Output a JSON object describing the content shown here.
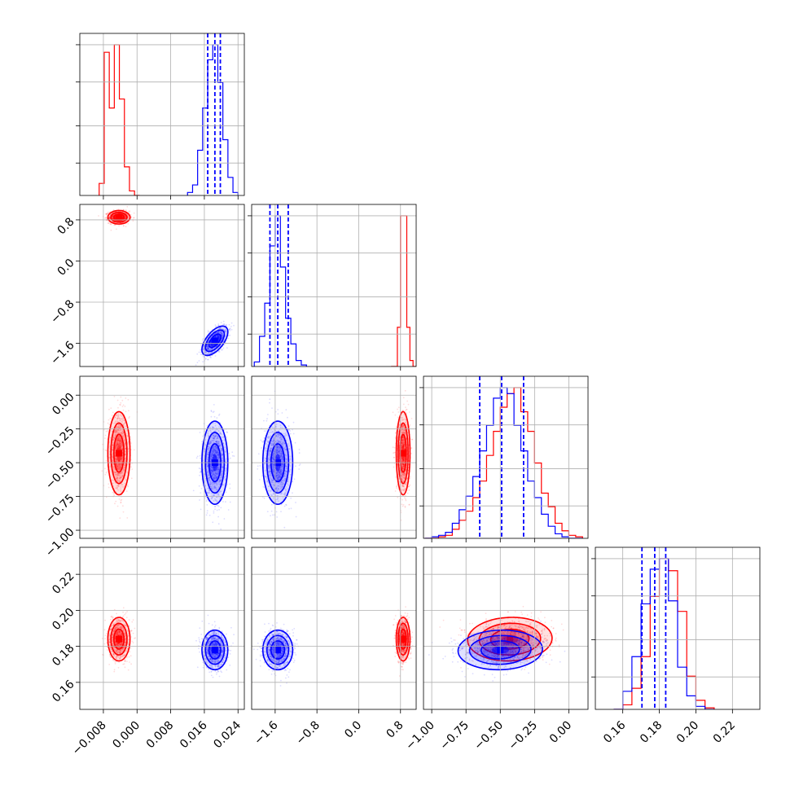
{
  "chart_data": {
    "type": "corner",
    "title": "",
    "n_params": 4,
    "grid": true,
    "colors": {
      "series_a": "#ff0000",
      "series_b": "#0000ff",
      "grid": "#b0b0b0",
      "axes": "#000000"
    },
    "params": [
      {
        "range": [
          -0.0136,
          0.0255
        ],
        "ticks": [
          -0.008,
          0.0,
          0.008,
          0.016,
          0.024
        ],
        "tick_labels": [
          "−0.008",
          "0.000",
          "0.008",
          "0.016",
          "0.024"
        ]
      },
      {
        "range": [
          -2.05,
          1.1
        ],
        "ticks": [
          -1.6,
          -0.8,
          0.0,
          0.8
        ],
        "tick_labels": [
          "−1.6",
          "−0.8",
          "0.0",
          "0.8"
        ]
      },
      {
        "range": [
          -1.06,
          0.14
        ],
        "ticks": [
          -1.0,
          -0.75,
          -0.5,
          -0.25,
          0.0
        ],
        "tick_labels": [
          "−1.00",
          "−0.75",
          "−0.50",
          "−0.25",
          "0.00"
        ]
      },
      {
        "range": [
          0.145,
          0.235
        ],
        "ticks": [
          0.16,
          0.18,
          0.2,
          0.22
        ],
        "tick_labels": [
          "0.16",
          "0.18",
          "0.20",
          "0.22"
        ]
      }
    ],
    "series": [
      {
        "color": "#ff0000",
        "means": [
          -0.0043,
          0.85,
          -0.43,
          0.184
        ],
        "sds": [
          0.0012,
          0.06,
          0.14,
          0.0055
        ],
        "correlations": {
          "0-1": 0.0,
          "0-2": 0.0,
          "0-3": 0.0,
          "1-2": 0.0,
          "1-3": 0.0,
          "2-3": 0.05
        },
        "histograms": [
          {
            "edges": [
              -0.009,
              -0.0078,
              -0.0066,
              -0.0054,
              -0.0042,
              -0.003,
              -0.0018,
              -0.0006,
              0.0006
            ],
            "counts": [
              8,
              95,
              58,
              100,
              64,
              19,
              3,
              0
            ]
          },
          {
            "edges": [
              0.62,
              0.68,
              0.74,
              0.8,
              0.86,
              0.92,
              0.98,
              1.04,
              1.1
            ],
            "counts": [
              0,
              0,
              26,
              100,
              100,
              26,
              4,
              0
            ]
          },
          {
            "edges": [
              -1.05,
              -1.0,
              -0.95,
              -0.9,
              -0.85,
              -0.8,
              -0.75,
              -0.7,
              -0.65,
              -0.6,
              -0.55,
              -0.5,
              -0.45,
              -0.4,
              -0.35,
              -0.3,
              -0.25,
              -0.2,
              -0.15,
              -0.1,
              -0.05,
              0.0,
              0.05,
              0.1
            ],
            "counts": [
              0,
              0,
              1,
              2,
              6,
              12,
              18,
              27,
              38,
              55,
              71,
              87,
              96,
              100,
              84,
              71,
              50,
              30,
              21,
              10,
              5,
              2,
              1
            ]
          },
          {
            "edges": [
              0.155,
              0.16,
              0.165,
              0.17,
              0.175,
              0.18,
              0.185,
              0.19,
              0.195,
              0.2,
              0.205,
              0.21
            ],
            "counts": [
              0,
              3,
              14,
              35,
              75,
              100,
              92,
              65,
              22,
              6,
              1
            ]
          }
        ]
      },
      {
        "color": "#0000ff",
        "means": [
          0.0185,
          -1.55,
          -0.5,
          0.178
        ],
        "sds": [
          0.0014,
          0.13,
          0.14,
          0.005
        ],
        "correlations": {
          "0-1": 0.6,
          "0-2": 0.0,
          "0-3": 0.0,
          "1-2": 0.0,
          "1-3": 0.0,
          "2-3": 0.05
        },
        "histograms": [
          {
            "edges": [
              0.012,
              0.0132,
              0.0144,
              0.0156,
              0.0168,
              0.018,
              0.0192,
              0.0204,
              0.0216,
              0.0228,
              0.024
            ],
            "counts": [
              2,
              7,
              30,
              58,
              90,
              100,
              75,
              37,
              12,
              2
            ]
          },
          {
            "edges": [
              -2.0,
              -1.9,
              -1.8,
              -1.7,
              -1.6,
              -1.5,
              -1.4,
              -1.3,
              -1.2,
              -1.1,
              -1.0
            ],
            "counts": [
              3,
              20,
              42,
              80,
              100,
              66,
              32,
              15,
              4,
              1
            ]
          },
          {
            "edges": [
              -1.05,
              -1.0,
              -0.95,
              -0.9,
              -0.85,
              -0.8,
              -0.75,
              -0.7,
              -0.65,
              -0.6,
              -0.55,
              -0.5,
              -0.45,
              -0.4,
              -0.35,
              -0.3,
              -0.25,
              -0.2,
              -0.15,
              -0.1,
              -0.05,
              0.0,
              0.05,
              0.1
            ],
            "counts": [
              0,
              1,
              2,
              4,
              10,
              19,
              28,
              41,
              58,
              75,
              93,
              100,
              96,
              75,
              58,
              38,
              27,
              16,
              8,
              3,
              1,
              0,
              0
            ]
          },
          {
            "edges": [
              0.155,
              0.16,
              0.165,
              0.17,
              0.175,
              0.18,
              0.185,
              0.19,
              0.195,
              0.2,
              0.205,
              0.21
            ],
            "counts": [
              0,
              12,
              35,
              70,
              93,
              100,
              72,
              28,
              9,
              2,
              0
            ]
          }
        ]
      }
    ],
    "quantile_lines": {
      "color": "#0000ff",
      "values": [
        [
          0.0168,
          0.0185,
          0.0198
        ],
        [
          -1.7,
          -1.55,
          -1.35
        ],
        [
          -0.65,
          -0.49,
          -0.33
        ],
        [
          0.1705,
          0.1775,
          0.1835
        ]
      ]
    }
  }
}
